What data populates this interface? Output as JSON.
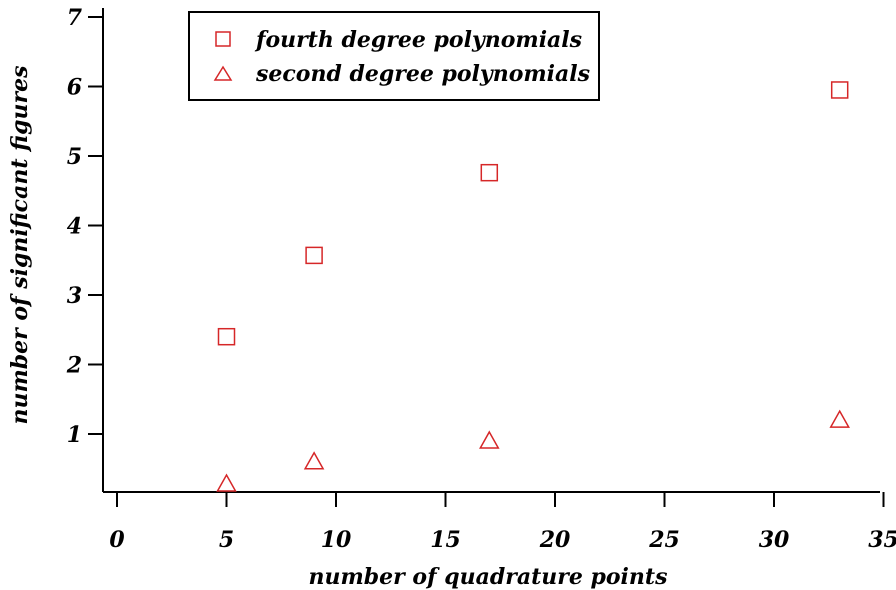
{
  "chart_data": {
    "type": "scatter",
    "xlabel": "number of quadrature points",
    "ylabel": "number of significant figures",
    "xlim": [
      0,
      35
    ],
    "ylim": [
      0,
      7
    ],
    "x_ticks": [
      0,
      5,
      10,
      15,
      20,
      25,
      30,
      35
    ],
    "y_ticks": [
      1,
      2,
      3,
      4,
      5,
      6,
      7
    ],
    "grid": false,
    "legend_position": "top-left",
    "series": [
      {
        "name": "fourth degree polynomials",
        "marker": "square",
        "color": "#d62728",
        "x": [
          5,
          9,
          17,
          33
        ],
        "y": [
          2.4,
          3.57,
          4.76,
          5.95
        ]
      },
      {
        "name": "second degree polynomials",
        "marker": "triangle",
        "color": "#d62728",
        "x": [
          5,
          9,
          17,
          33
        ],
        "y": [
          0.28,
          0.6,
          0.9,
          1.2
        ]
      }
    ]
  }
}
